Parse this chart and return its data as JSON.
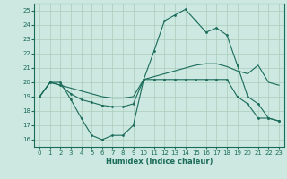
{
  "xlabel": "Humidex (Indice chaleur)",
  "ylabel": "",
  "bg_color": "#cce8e0",
  "grid_color": "#aaccbb",
  "line_color": "#1a6b5a",
  "xlim": [
    -0.5,
    23.5
  ],
  "ylim": [
    15.5,
    25.5
  ],
  "xticks": [
    0,
    1,
    2,
    3,
    4,
    5,
    6,
    7,
    8,
    9,
    10,
    11,
    12,
    13,
    14,
    15,
    16,
    17,
    18,
    19,
    20,
    21,
    22,
    23
  ],
  "yticks": [
    16,
    17,
    18,
    19,
    20,
    21,
    22,
    23,
    24,
    25
  ],
  "curve_spike": {
    "x": [
      0,
      1,
      2,
      3,
      4,
      5,
      6,
      7,
      8,
      9,
      10,
      11,
      12,
      13,
      14,
      15,
      16,
      17,
      18,
      19,
      20,
      21,
      22,
      23
    ],
    "y": [
      19,
      20,
      19.8,
      19.2,
      18.8,
      18.6,
      18.4,
      18.3,
      18.3,
      18.5,
      20.2,
      22.2,
      24.3,
      24.7,
      25.1,
      24.3,
      23.5,
      23.8,
      23.3,
      21.2,
      19.0,
      18.5,
      17.5,
      17.3
    ],
    "marker": true
  },
  "curve_mid": {
    "x": [
      0,
      1,
      2,
      3,
      4,
      5,
      6,
      7,
      8,
      9,
      10,
      11,
      12,
      13,
      14,
      15,
      16,
      17,
      18,
      19,
      20,
      21,
      22,
      23
    ],
    "y": [
      19,
      20,
      19.8,
      19.6,
      19.4,
      19.2,
      19.0,
      18.9,
      18.9,
      19.0,
      20.2,
      20.4,
      20.6,
      20.8,
      21.0,
      21.2,
      21.3,
      21.3,
      21.1,
      20.8,
      20.6,
      21.2,
      20.0,
      19.8
    ],
    "marker": false
  },
  "curve_low": {
    "x": [
      0,
      1,
      2,
      3,
      4,
      5,
      6,
      7,
      8,
      9,
      10,
      11,
      12,
      13,
      14,
      15,
      16,
      17,
      18,
      19,
      20,
      21,
      22,
      23
    ],
    "y": [
      19,
      20,
      20,
      18.8,
      17.5,
      16.3,
      16.0,
      16.3,
      16.3,
      17.0,
      20.2,
      20.2,
      20.2,
      20.2,
      20.2,
      20.2,
      20.2,
      20.2,
      20.2,
      19.0,
      18.5,
      17.5,
      17.5,
      17.3
    ],
    "marker": true
  }
}
